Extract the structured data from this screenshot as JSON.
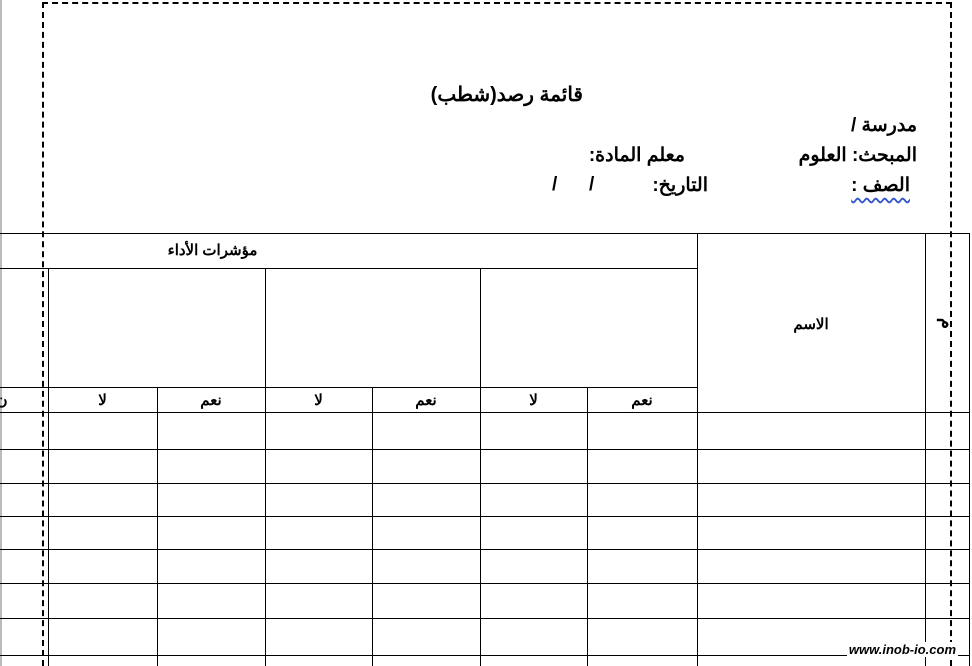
{
  "header": {
    "title": "قائمة رصد(شطب)",
    "school_label": "مدرسة /",
    "subject_label": "المبحث: العلوم",
    "teacher_label": "معلم المادة:",
    "class_label": "الصف :",
    "date_label": "التاريخ:",
    "date_slashes": "/      /"
  },
  "table": {
    "number_header": "م",
    "name_header": "الاسم",
    "indicators_header": "مؤشرات الأداء",
    "yes_label": "نعم",
    "no_label": "لا",
    "cut_off_label": "ن"
  },
  "footer": {
    "watermark": "www.inob-io.com"
  }
}
